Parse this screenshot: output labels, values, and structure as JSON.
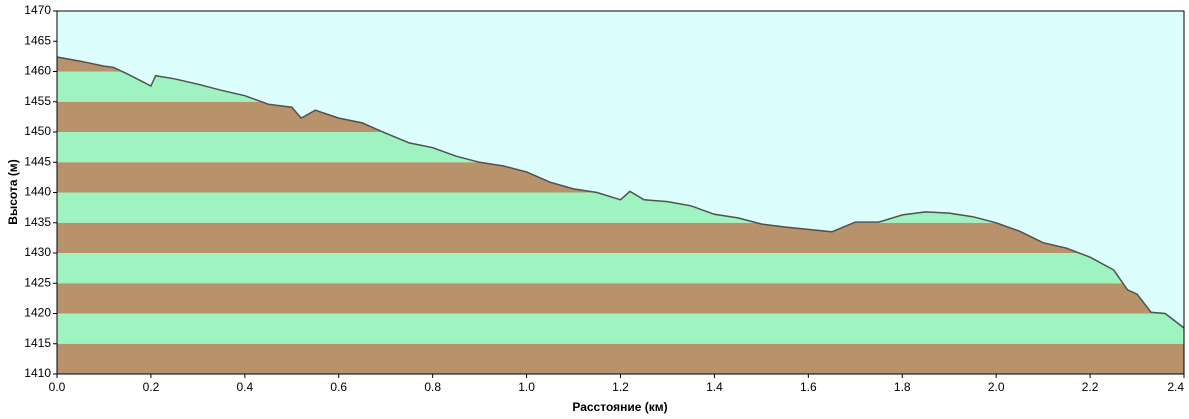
{
  "chart_data": {
    "type": "area",
    "ylabel": "Высота (м)",
    "xlabel": "Расстояние  (км)",
    "x": [
      0,
      0.05,
      0.1,
      0.12,
      0.15,
      0.2,
      0.21,
      0.25,
      0.3,
      0.35,
      0.4,
      0.45,
      0.5,
      0.52,
      0.55,
      0.6,
      0.65,
      0.7,
      0.75,
      0.8,
      0.85,
      0.9,
      0.95,
      1.0,
      1.05,
      1.1,
      1.15,
      1.2,
      1.22,
      1.25,
      1.3,
      1.35,
      1.4,
      1.45,
      1.5,
      1.55,
      1.6,
      1.65,
      1.7,
      1.75,
      1.8,
      1.85,
      1.9,
      1.95,
      2.0,
      2.05,
      2.1,
      2.15,
      2.2,
      2.25,
      2.28,
      2.3,
      2.33,
      2.36,
      2.4
    ],
    "values": [
      1462.4,
      1461.7,
      1460.9,
      1460.7,
      1459.6,
      1457.6,
      1459.3,
      1458.8,
      1457.9,
      1456.9,
      1456,
      1454.6,
      1454.1,
      1452.3,
      1453.6,
      1452.3,
      1451.5,
      1449.8,
      1448.2,
      1447.4,
      1446,
      1445,
      1444.4,
      1443.4,
      1441.7,
      1440.6,
      1440,
      1438.8,
      1440.2,
      1438.8,
      1438.5,
      1437.8,
      1436.4,
      1435.8,
      1434.8,
      1434.3,
      1433.9,
      1433.5,
      1435.1,
      1435.1,
      1436.3,
      1436.8,
      1436.6,
      1436,
      1435,
      1433.6,
      1431.7,
      1430.8,
      1429.3,
      1427.2,
      1423.9,
      1423.2,
      1420.2,
      1420,
      1417.6
    ],
    "xlim": [
      0,
      2.4
    ],
    "xticks": [
      {
        "value": 0,
        "label": "0.0"
      },
      0.2,
      0.4,
      0.6,
      0.8,
      {
        "value": 1,
        "label": "1.0"
      },
      1.2,
      1.4,
      1.6,
      1.8,
      {
        "value": 2,
        "label": "2.0"
      },
      2.2,
      2.4
    ],
    "ylim": [
      1410,
      1470
    ],
    "yticks": [
      1410,
      1415,
      1420,
      1425,
      1430,
      1435,
      1440,
      1445,
      1450,
      1455,
      1460,
      1465,
      1470
    ],
    "sky_color": "#dcfffe",
    "band_colors": [
      "#b8926a",
      "#9ef3c0"
    ],
    "line_color": "#505050"
  }
}
